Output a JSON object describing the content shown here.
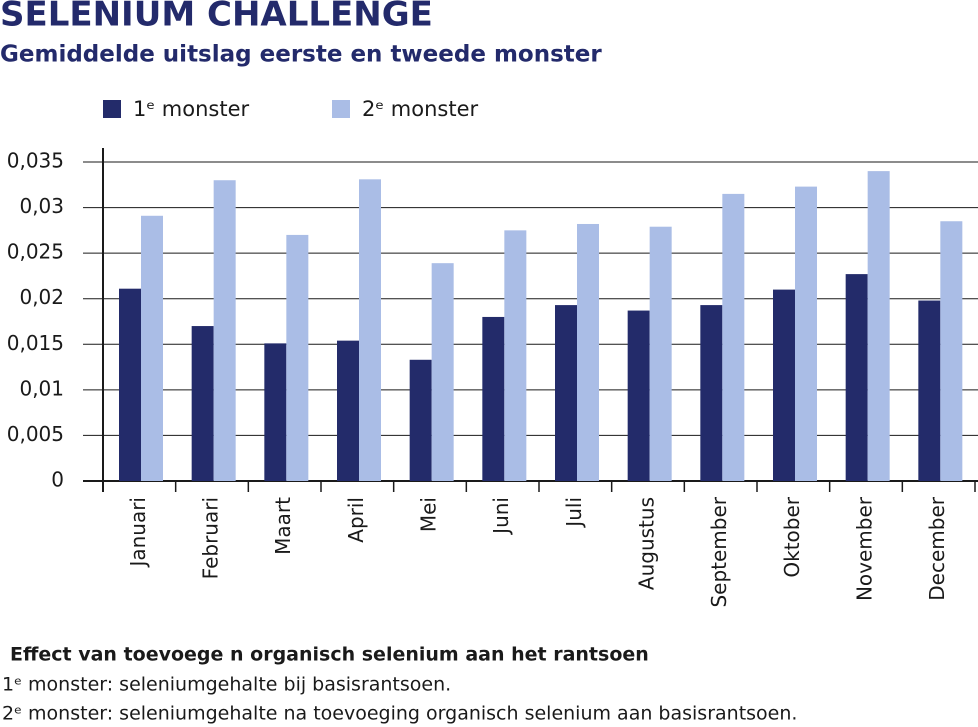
{
  "chart_data": {
    "type": "bar",
    "title": "SELENIUM CHALLENGE",
    "subtitle": "Gemiddelde uitslag eerste en tweede monster",
    "categories": [
      "Januari",
      "Februari",
      "Maart",
      "April",
      "Mei",
      "Juni",
      "Juli",
      "Augustus",
      "September",
      "Oktober",
      "November",
      "December"
    ],
    "series": [
      {
        "name": "1ᵉ monster",
        "color": "#232b6a",
        "values": [
          0.0211,
          0.017,
          0.0151,
          0.0154,
          0.0133,
          0.018,
          0.0193,
          0.0187,
          0.0193,
          0.021,
          0.0227,
          0.0198
        ]
      },
      {
        "name": "2ᵉ monster",
        "color": "#aabde6",
        "values": [
          0.0291,
          0.033,
          0.027,
          0.0331,
          0.0239,
          0.0275,
          0.0282,
          0.0279,
          0.0315,
          0.0323,
          0.034,
          0.0285
        ]
      }
    ],
    "ylim": [
      0,
      0.035
    ],
    "yticks": [
      0,
      {
        "value": 0.005,
        "label": "0,005"
      },
      {
        "value": 0.01,
        "label": "0,01"
      },
      {
        "value": 0.015,
        "label": "0,015"
      },
      {
        "value": 0.02,
        "label": "0,02"
      },
      {
        "value": 0.025,
        "label": "0,025"
      },
      {
        "value": 0.03,
        "label": "0,03"
      },
      {
        "value": 0.035,
        "label": "0,035"
      }
    ],
    "grid": true,
    "footnote_title": "Effect van toevoege n organisch selenium aan het rantsoen",
    "notes": [
      "1ᵉ monster: seleniumgehalte bij basisrantsoen.",
      "2ᵉ monster: seleniumgehalte na toevoeging organisch selenium aan basisrantsoen."
    ]
  }
}
